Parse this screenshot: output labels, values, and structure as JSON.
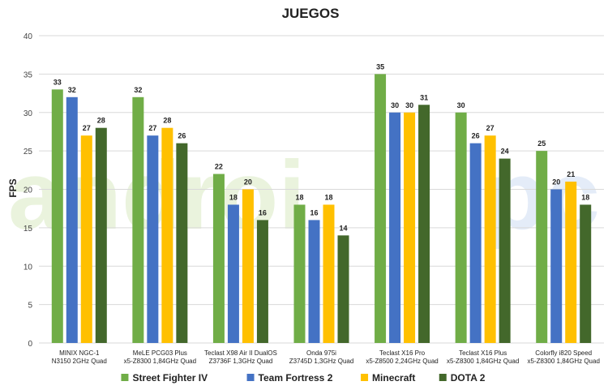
{
  "watermark": {
    "text_main": "androi",
    "text_end": "pc"
  },
  "chart_data": {
    "type": "bar",
    "title": "JUEGOS",
    "ylabel": "FPS",
    "xlabel": "",
    "ylim": [
      0,
      40
    ],
    "yticks": [
      0,
      5,
      10,
      15,
      20,
      25,
      30,
      35,
      40
    ],
    "grid": true,
    "legend_position": "bottom",
    "categories": [
      [
        "MINIX NGC-1",
        "N3150 2GHz Quad"
      ],
      [
        "MeLE PCG03 Plus",
        "x5-Z8300 1,84GHz Quad"
      ],
      [
        "Teclast X98 Air II DualOS",
        "Z3736F 1,3GHz Quad"
      ],
      [
        "Onda 975i",
        "Z3745D 1,3GHz Quad"
      ],
      [
        "Teclast X16 Pro",
        "x5-Z8500 2,24GHz Quad"
      ],
      [
        "Teclast X16 Plus",
        "x5-Z8300 1,84GHz Quad"
      ],
      [
        "Colorfly i820 Speed",
        "x5-Z8300 1,84GHz Quad"
      ]
    ],
    "series": [
      {
        "name": "Street Fighter IV",
        "color": "#70ad47",
        "values": [
          33,
          32,
          22,
          18,
          35,
          30,
          25
        ]
      },
      {
        "name": "Team Fortress 2",
        "color": "#4472c4",
        "values": [
          32,
          27,
          18,
          16,
          30,
          26,
          20
        ]
      },
      {
        "name": "Minecraft",
        "color": "#ffc000",
        "values": [
          27,
          28,
          20,
          18,
          30,
          27,
          21
        ]
      },
      {
        "name": "DOTA 2",
        "color": "#43682b",
        "values": [
          28,
          26,
          16,
          14,
          31,
          24,
          18
        ]
      }
    ]
  }
}
